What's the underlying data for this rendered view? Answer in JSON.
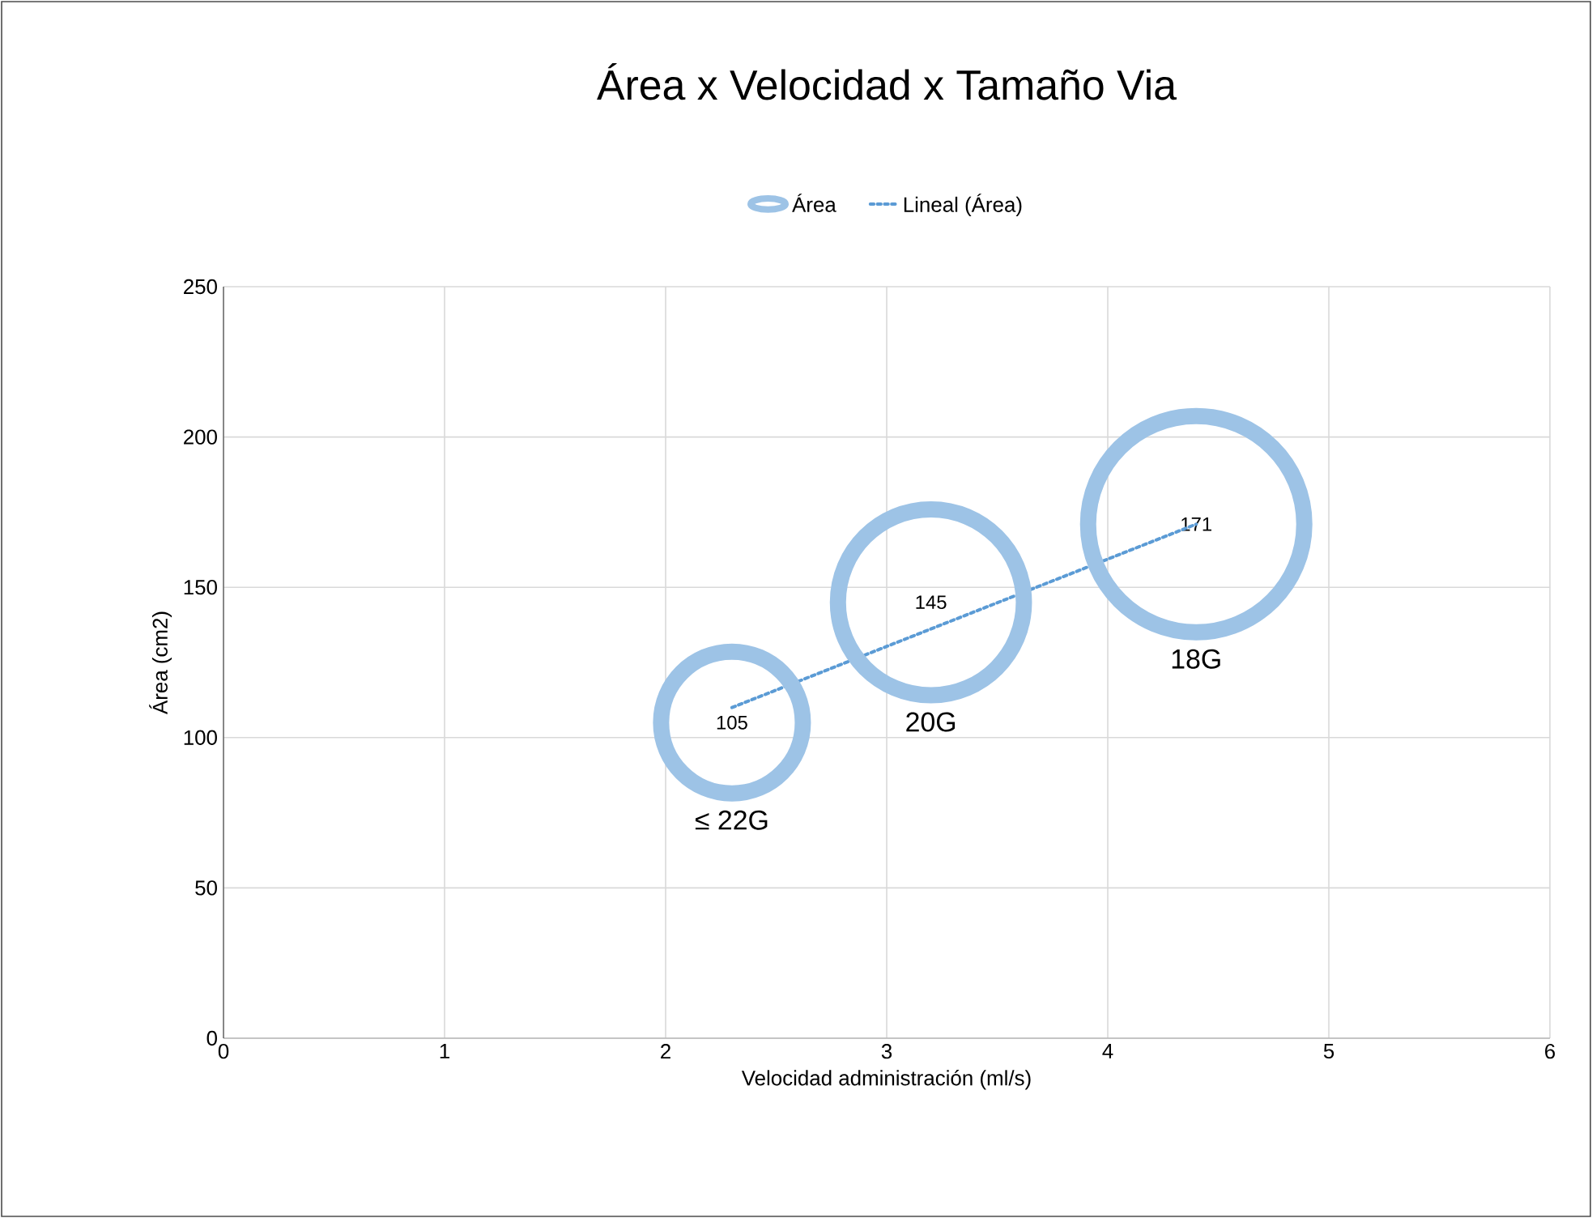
{
  "chart_data": {
    "type": "bubble",
    "title": "Área x Velocidad x Tamaño Via",
    "xlabel": "Velocidad administración (ml/s)",
    "ylabel": "Área (cm2)",
    "xlim": [
      0,
      6
    ],
    "xticks": [
      0,
      1,
      2,
      3,
      4,
      5,
      6
    ],
    "ylim": [
      0,
      250
    ],
    "yticks": [
      0,
      50,
      100,
      150,
      200,
      250
    ],
    "grid": true,
    "legend": "top",
    "series": [
      {
        "name": "Área",
        "color": "#9dc3e6",
        "x": [
          2.3,
          3.2,
          4.4
        ],
        "values": [
          105,
          145,
          171
        ],
        "sizes": [
          0.43,
          0.74,
          1
        ],
        "value_labels": [
          "105",
          "145",
          "171"
        ]
      },
      {
        "name": "Lineal (Área)",
        "type": "line",
        "color": "#5b9bd5",
        "line_style": "dotted",
        "x": [
          2.3,
          4.4
        ],
        "values": [
          110,
          171
        ]
      }
    ],
    "annotations": [
      "≤ 22G",
      "20G",
      "18G"
    ]
  }
}
